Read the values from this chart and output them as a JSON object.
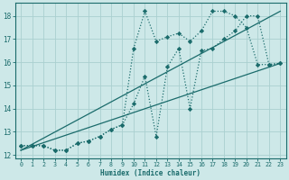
{
  "xlabel": "Humidex (Indice chaleur)",
  "background_color": "#cde8e8",
  "grid_color": "#aad0d0",
  "line_color": "#1a6b6b",
  "xlim": [
    -0.5,
    23.5
  ],
  "ylim": [
    11.85,
    18.55
  ],
  "yticks": [
    12,
    13,
    14,
    15,
    16,
    17,
    18
  ],
  "xticks": [
    0,
    1,
    2,
    3,
    4,
    5,
    6,
    7,
    8,
    9,
    10,
    11,
    12,
    13,
    14,
    15,
    16,
    17,
    18,
    19,
    20,
    21,
    22,
    23
  ],
  "series": [
    {
      "x": [
        0,
        1,
        2,
        3,
        4,
        5,
        6,
        7,
        8,
        9,
        10,
        11,
        12,
        13,
        14,
        15,
        16,
        17,
        18,
        19,
        20,
        21,
        22,
        23
      ],
      "y": [
        12.4,
        12.4,
        12.4,
        12.2,
        12.2,
        12.5,
        12.6,
        12.8,
        13.1,
        13.3,
        14.2,
        15.4,
        12.8,
        15.8,
        16.6,
        14.0,
        16.5,
        16.6,
        17.0,
        17.35,
        18.0,
        18.0,
        15.9,
        15.95
      ]
    },
    {
      "x": [
        0,
        1,
        2,
        3,
        4,
        5,
        6,
        7,
        8,
        9,
        10,
        11,
        12,
        13,
        14,
        15,
        16,
        17,
        18,
        19,
        20,
        21,
        22,
        23
      ],
      "y": [
        12.4,
        12.4,
        12.4,
        12.2,
        12.2,
        12.5,
        12.6,
        12.8,
        13.1,
        13.3,
        16.6,
        18.2,
        16.9,
        17.1,
        17.25,
        16.9,
        17.35,
        18.2,
        18.2,
        18.0,
        17.5,
        15.9,
        15.9,
        15.95
      ]
    },
    {
      "x": [
        0,
        23
      ],
      "y": [
        12.2,
        15.95
      ]
    },
    {
      "x": [
        0,
        23
      ],
      "y": [
        12.2,
        18.2
      ]
    }
  ]
}
